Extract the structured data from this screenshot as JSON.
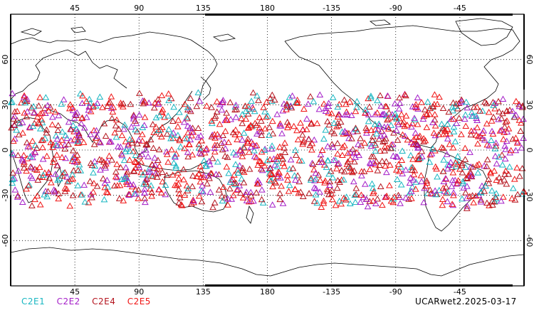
{
  "map": {
    "projection": "cylindrical-equidistant",
    "center_longitude": 180,
    "lat_range": [
      -90,
      90
    ],
    "top_longitude_ticks": [
      "45",
      "90",
      "135",
      "180",
      "-135",
      "-90",
      "-45"
    ],
    "bottom_longitude_ticks": [
      "45",
      "90",
      "135",
      "180",
      "-135",
      "-90",
      "-45"
    ],
    "latitude_ticks": [
      "60",
      "30",
      "0",
      "-30",
      "-60"
    ],
    "grid": "dotted",
    "coastline_color": "#000000"
  },
  "legend": [
    {
      "name": "C2E1",
      "color": "#19b7c2"
    },
    {
      "name": "C2E2",
      "color": "#a41ec8"
    },
    {
      "name": "C2E4",
      "color": "#b4141e"
    },
    {
      "name": "C2E5",
      "color": "#f01414"
    }
  ],
  "stamp": "UCARwet2.2025-03-17",
  "chart_data": {
    "type": "scatter",
    "marker": "triangle-open",
    "lat_band": [
      -40,
      40
    ],
    "series": [
      {
        "name": "C2E1",
        "color": "#19b7c2"
      },
      {
        "name": "C2E2",
        "color": "#a41ec8"
      },
      {
        "name": "C2E4",
        "color": "#b4141e"
      },
      {
        "name": "C2E5",
        "color": "#f01414"
      }
    ]
  }
}
